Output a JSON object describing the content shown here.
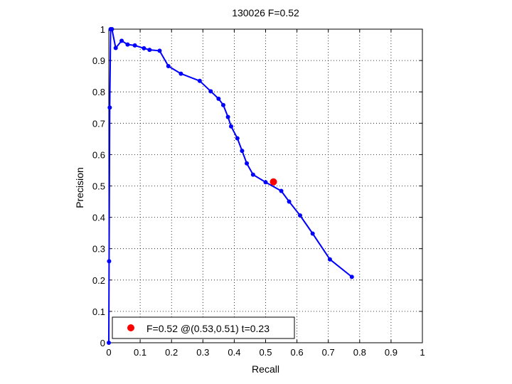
{
  "chart_data": {
    "type": "line",
    "title": "130026 F=0.52",
    "xlabel": "Recall",
    "ylabel": "Precision",
    "xlim": [
      0,
      1
    ],
    "ylim": [
      0,
      1
    ],
    "xticks": [
      0,
      0.1,
      0.2,
      0.3,
      0.4,
      0.5,
      0.6,
      0.7,
      0.8,
      0.9,
      1
    ],
    "yticks": [
      0,
      0.1,
      0.2,
      0.3,
      0.4,
      0.5,
      0.6,
      0.7,
      0.8,
      0.9,
      1
    ],
    "xtick_labels": [
      "0",
      "0.1",
      "0.2",
      "0.3",
      "0.4",
      "0.5",
      "0.6",
      "0.7",
      "0.8",
      "0.9",
      "1"
    ],
    "ytick_labels": [
      "0",
      "0.1",
      "0.2",
      "0.3",
      "0.4",
      "0.5",
      "0.6",
      "0.7",
      "0.8",
      "0.9",
      "1"
    ],
    "grid": true,
    "line_color": "#0000ff",
    "marker_color": "#0000ff",
    "highlight_color": "#ff0000",
    "series": [
      {
        "x": [
          0.0,
          0.001,
          0.003,
          0.006,
          0.01,
          0.022,
          0.041,
          0.06,
          0.083,
          0.112,
          0.13,
          0.162,
          0.19,
          0.23,
          0.29,
          0.325,
          0.35,
          0.365,
          0.38,
          0.39,
          0.41,
          0.425,
          0.44,
          0.46,
          0.5,
          0.55,
          0.575,
          0.61,
          0.65,
          0.705,
          0.775
        ],
        "y": [
          0.0,
          0.26,
          0.75,
          1.0,
          1.0,
          0.94,
          0.963,
          0.951,
          0.948,
          0.939,
          0.934,
          0.931,
          0.882,
          0.858,
          0.835,
          0.802,
          0.778,
          0.758,
          0.72,
          0.69,
          0.652,
          0.612,
          0.572,
          0.536,
          0.512,
          0.484,
          0.45,
          0.406,
          0.348,
          0.266,
          0.21
        ]
      }
    ],
    "highlight_point": {
      "x": 0.525,
      "y": 0.513
    },
    "legend": {
      "position": "bottom-left",
      "label": "F=0.52 @(0.53,0.51) t=0.23"
    }
  }
}
